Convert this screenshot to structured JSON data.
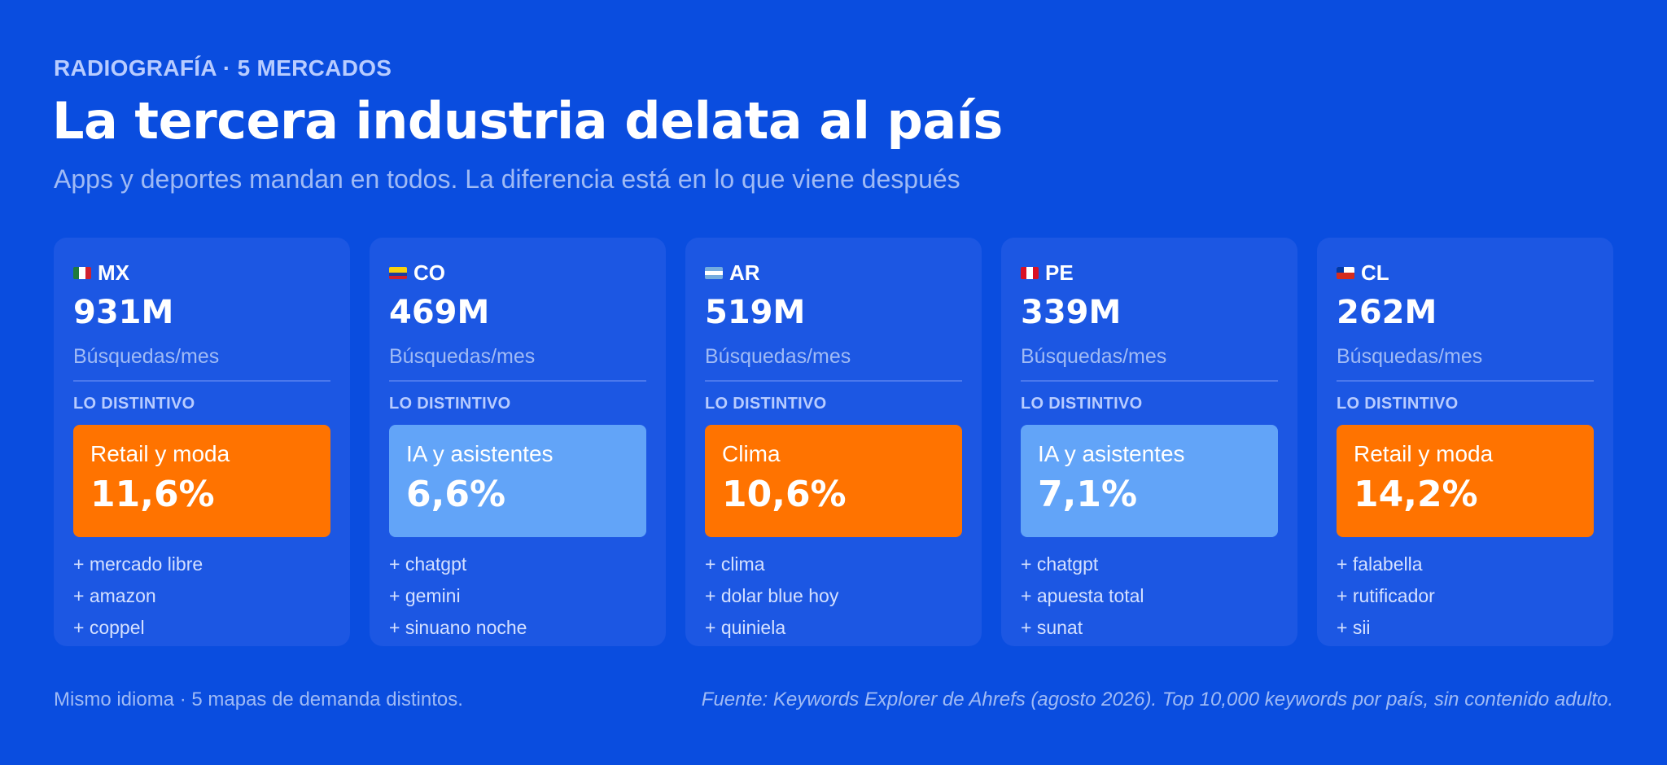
{
  "header": {
    "eyebrow": "RADIOGRAFÍA · 5 MERCADOS",
    "title": "La tercera industria delata al país",
    "subtitle": "Apps y deportes mandan en todos. La diferencia está en lo que viene después"
  },
  "colors": {
    "background": "#0a4ddf",
    "card": "#1c57e3",
    "accent_orange": "#ff7300",
    "accent_light_blue": "#62a4f8"
  },
  "cards": [
    {
      "code": "MX",
      "flag_icon": "mexico-flag-icon",
      "volume": "931M",
      "metric_label": "Búsquedas/mes",
      "distinct_label": "LO DISTINTIVO",
      "category": "Retail y moda",
      "share": "11,6%",
      "highlight_color": "#ff7300",
      "keywords": [
        "+ mercado libre",
        "+ amazon",
        "+ coppel"
      ]
    },
    {
      "code": "CO",
      "flag_icon": "colombia-flag-icon",
      "volume": "469M",
      "metric_label": "Búsquedas/mes",
      "distinct_label": "LO DISTINTIVO",
      "category": "IA y asistentes",
      "share": "6,6%",
      "highlight_color": "#62a4f8",
      "keywords": [
        "+ chatgpt",
        "+ gemini",
        "+ sinuano noche"
      ]
    },
    {
      "code": "AR",
      "flag_icon": "argentina-flag-icon",
      "volume": "519M",
      "metric_label": "Búsquedas/mes",
      "distinct_label": "LO DISTINTIVO",
      "category": "Clima",
      "share": "10,6%",
      "highlight_color": "#ff7300",
      "keywords": [
        "+ clima",
        "+ dolar blue hoy",
        "+ quiniela"
      ]
    },
    {
      "code": "PE",
      "flag_icon": "peru-flag-icon",
      "volume": "339M",
      "metric_label": "Búsquedas/mes",
      "distinct_label": "LO DISTINTIVO",
      "category": "IA y asistentes",
      "share": "7,1%",
      "highlight_color": "#62a4f8",
      "keywords": [
        "+ chatgpt",
        "+ apuesta total",
        "+ sunat"
      ]
    },
    {
      "code": "CL",
      "flag_icon": "chile-flag-icon",
      "volume": "262M",
      "metric_label": "Búsquedas/mes",
      "distinct_label": "LO DISTINTIVO",
      "category": "Retail y moda",
      "share": "14,2%",
      "highlight_color": "#ff7300",
      "keywords": [
        "+ falabella",
        "+ rutificador",
        "+ sii"
      ]
    }
  ],
  "footer": {
    "left": "Mismo idioma · 5 mapas de demanda distintos.",
    "source": "Fuente: Keywords Explorer de Ahrefs (agosto 2026). Top 10,000 keywords por país, sin contenido adulto."
  }
}
